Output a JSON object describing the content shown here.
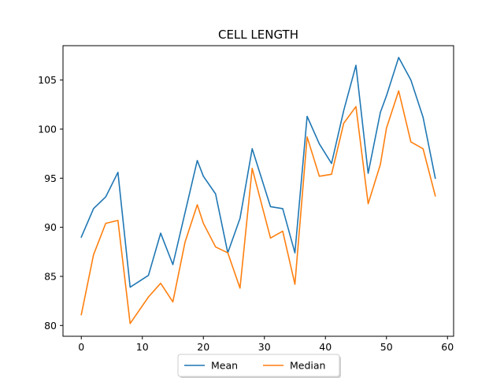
{
  "chart_data": {
    "type": "line",
    "title": "CELL LENGTH",
    "xlabel": "",
    "ylabel": "",
    "xlim": [
      -3,
      61
    ],
    "ylim": [
      78.9,
      108.5
    ],
    "xticks": [
      0,
      10,
      20,
      30,
      40,
      50,
      60
    ],
    "yticks": [
      80,
      85,
      90,
      95,
      100,
      105
    ],
    "grid": false,
    "legend_position": "bottom-center",
    "series": [
      {
        "name": "Mean",
        "color": "#1f77b4",
        "x": [
          0,
          2,
          4,
          6,
          8,
          11,
          13,
          15,
          17,
          19,
          20,
          22,
          24,
          26,
          28,
          31,
          33,
          35,
          37,
          39,
          41,
          43,
          45,
          47,
          49,
          50,
          52,
          54,
          56,
          58
        ],
        "y": [
          89.0,
          91.9,
          93.1,
          95.6,
          83.9,
          85.1,
          89.4,
          86.2,
          91.5,
          96.8,
          95.2,
          93.4,
          87.4,
          90.9,
          98.0,
          92.1,
          91.9,
          87.4,
          101.3,
          98.5,
          96.5,
          101.9,
          106.5,
          95.5,
          101.7,
          103.4,
          107.3,
          105.0,
          101.2,
          95.0
        ]
      },
      {
        "name": "Median",
        "color": "#ff7f0e",
        "x": [
          0,
          2,
          4,
          6,
          8,
          11,
          13,
          15,
          17,
          19,
          20,
          22,
          24,
          26,
          28,
          31,
          33,
          35,
          37,
          39,
          41,
          43,
          45,
          47,
          49,
          50,
          52,
          54,
          56,
          58
        ],
        "y": [
          81.1,
          87.2,
          90.4,
          90.7,
          80.2,
          82.9,
          84.3,
          82.4,
          88.5,
          92.3,
          90.4,
          88.0,
          87.4,
          83.8,
          96.0,
          88.9,
          89.6,
          84.2,
          99.2,
          95.2,
          95.4,
          100.6,
          102.3,
          92.4,
          96.4,
          100.1,
          103.9,
          98.7,
          98.0,
          93.2
        ]
      }
    ]
  }
}
